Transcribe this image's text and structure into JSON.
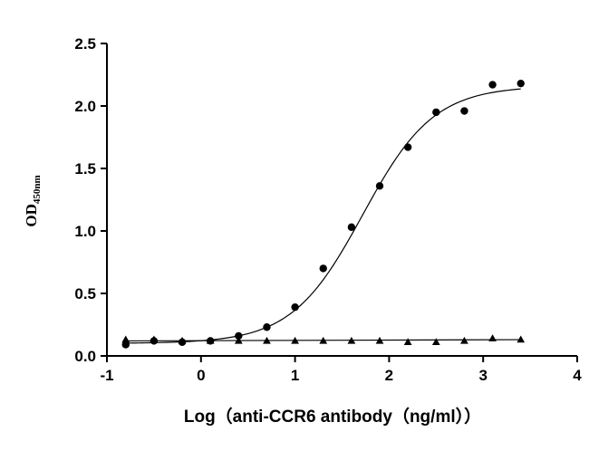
{
  "chart_data": {
    "type": "scatter",
    "title": "",
    "xlabel": "Log（anti-CCR6 antibody（ng/ml））",
    "ylabel": "OD",
    "ylabel_subscript": "450nm",
    "xlim": [
      -1,
      4
    ],
    "ylim": [
      0,
      2.5
    ],
    "xticks": [
      -1,
      0,
      1,
      2,
      3,
      4
    ],
    "xtick_labels": [
      "-1",
      "0",
      "1",
      "2",
      "3",
      "4"
    ],
    "yticks": [
      0,
      0.5,
      1,
      1.5,
      2,
      2.5
    ],
    "ytick_labels": [
      "0.0",
      "0.5",
      "1.0",
      "1.5",
      "2.0",
      "2.5"
    ],
    "grid": false,
    "legend": "none",
    "series": [
      {
        "marker": "circle",
        "fit": "sigmoidal",
        "color": "#000000",
        "x": [
          -0.8,
          -0.5,
          -0.2,
          0.1,
          0.4,
          0.7,
          1.0,
          1.3,
          1.6,
          1.9,
          2.2,
          2.5,
          2.8,
          3.1,
          3.4
        ],
        "y": [
          0.09,
          0.12,
          0.11,
          0.12,
          0.16,
          0.23,
          0.39,
          0.7,
          1.03,
          1.36,
          1.67,
          1.95,
          1.96,
          2.17,
          2.18
        ],
        "fit_params": {
          "bottom": 0.1,
          "top": 2.16,
          "logEC50": 1.72,
          "hill": 1.15
        }
      },
      {
        "marker": "triangle",
        "fit": "linear",
        "color": "#000000",
        "x": [
          -0.8,
          -0.5,
          -0.2,
          0.1,
          0.4,
          0.7,
          1.0,
          1.3,
          1.6,
          1.9,
          2.2,
          2.5,
          2.8,
          3.1,
          3.4
        ],
        "y": [
          0.13,
          0.13,
          0.12,
          0.12,
          0.12,
          0.12,
          0.12,
          0.12,
          0.12,
          0.12,
          0.11,
          0.11,
          0.12,
          0.14,
          0.13
        ],
        "fit_params": {
          "start": 0.12,
          "end": 0.13
        }
      }
    ]
  }
}
